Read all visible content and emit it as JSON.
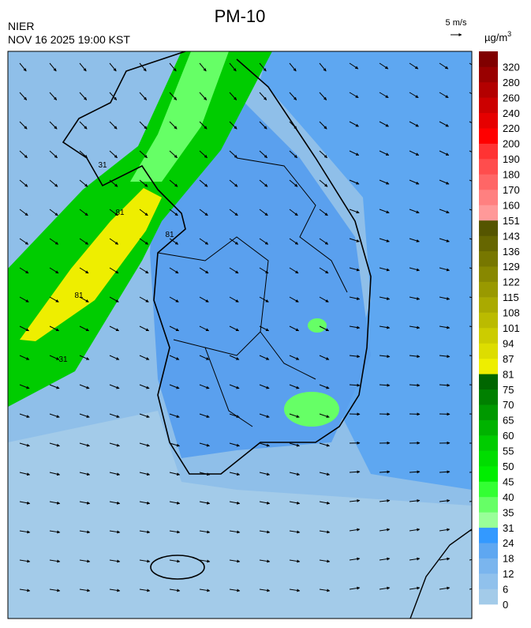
{
  "header": {
    "title": "PM-10",
    "agency": "NIER",
    "timestamp": "NOV 16 2025 19:00 KST",
    "wind_scale": "5 m/s"
  },
  "legend": {
    "unit": "µg/m",
    "unit_sup": "3",
    "labels": [
      0,
      6,
      12,
      18,
      24,
      31,
      35,
      40,
      45,
      50,
      55,
      60,
      65,
      70,
      75,
      81,
      87,
      94,
      101,
      108,
      115,
      122,
      129,
      136,
      143,
      151,
      160,
      170,
      180,
      190,
      200,
      220,
      240,
      260,
      280,
      320
    ],
    "colors": [
      "#a3cbe9",
      "#90c1ec",
      "#7ab5ee",
      "#5ea7f1",
      "#3399ff",
      "#99ff99",
      "#66ff66",
      "#33ff33",
      "#00ee00",
      "#00dd00",
      "#00cc00",
      "#00b300",
      "#009900",
      "#008000",
      "#006600",
      "#eeee00",
      "#dddd00",
      "#cccc00",
      "#bbbb00",
      "#aaaa00",
      "#999900",
      "#888800",
      "#777700",
      "#666600",
      "#555500",
      "#ff9999",
      "#ff8080",
      "#ff6666",
      "#ff4d4d",
      "#ff3333",
      "#ff0000",
      "#e60000",
      "#cc0000",
      "#b30000",
      "#990000",
      "#800000"
    ]
  },
  "contour_labels": [
    "31",
    "81",
    "81",
    "31",
    "81"
  ]
}
